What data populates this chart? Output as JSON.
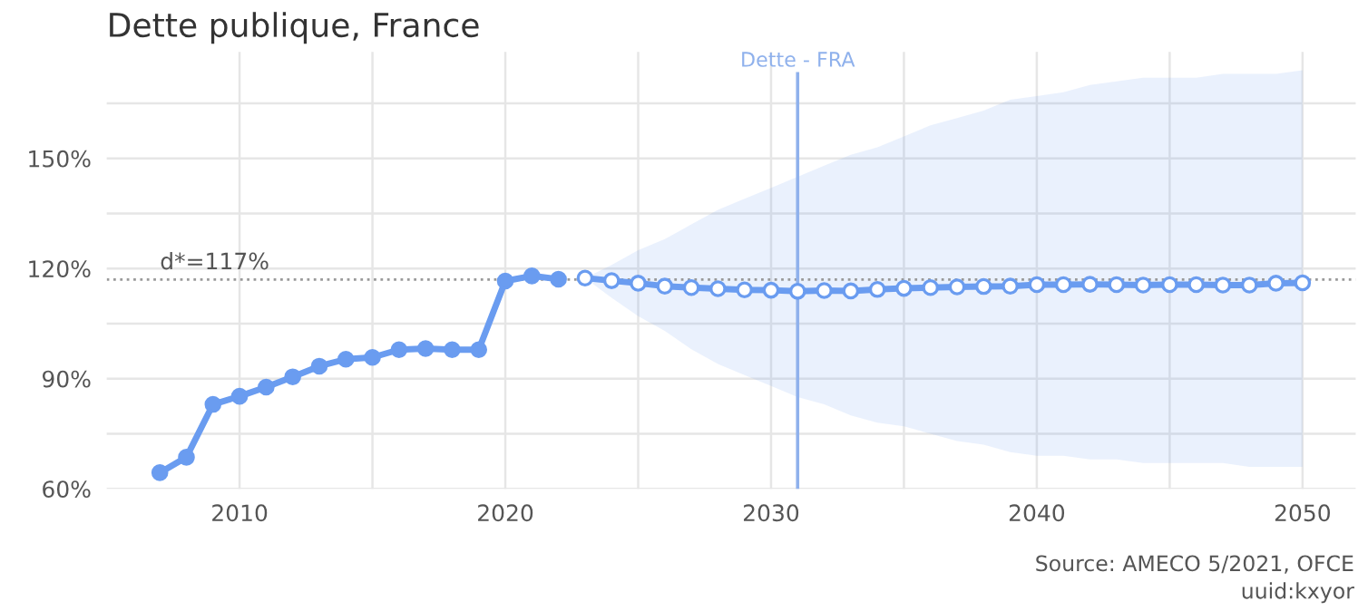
{
  "chart_data": {
    "type": "line",
    "title": "Dette publique, France",
    "xlim": [
      2005,
      2052
    ],
    "ylim": [
      60,
      179
    ],
    "xticks": [
      2010,
      {
        "value": 2015,
        "label": null
      },
      2020,
      {
        "value": 2025,
        "label": null
      },
      2030,
      {
        "value": 2035,
        "label": null
      },
      2040,
      {
        "value": 2045,
        "label": null
      },
      2050
    ],
    "yticks": [
      {
        "value": 60,
        "label": "60%"
      },
      {
        "value": 75,
        "label": null
      },
      {
        "value": 90,
        "label": "90%"
      },
      {
        "value": 105,
        "label": null
      },
      {
        "value": 120,
        "label": "120%"
      },
      {
        "value": 135,
        "label": null
      },
      {
        "value": 150,
        "label": "150%"
      },
      {
        "value": 165,
        "label": null
      }
    ],
    "grid": true,
    "marker": "circle",
    "line_style": "solid",
    "series": [
      {
        "color": "#6a9cf0",
        "x": [
          2007,
          2008,
          2009,
          2010,
          2011,
          2012,
          2013,
          2014,
          2015,
          2016,
          2017,
          2018,
          2019,
          2020,
          2021,
          2022
        ],
        "values": [
          64.4,
          68.6,
          83,
          85.2,
          87.7,
          90.5,
          93.4,
          95.3,
          95.8,
          97.9,
          98.2,
          97.9,
          97.9,
          116.6,
          118,
          117.1
        ]
      },
      {
        "color": "#6a9cf0",
        "x": [
          2023,
          2024,
          2025,
          2026,
          2027,
          2028,
          2029,
          2030,
          2031,
          2032,
          2033,
          2034,
          2035,
          2036,
          2037,
          2038,
          2039,
          2040,
          2041,
          2042,
          2043,
          2044,
          2045,
          2046,
          2047,
          2048,
          2049,
          2050
        ],
        "values": [
          117.4,
          116.7,
          116.0,
          115.2,
          114.8,
          114.5,
          114.2,
          114.1,
          113.8,
          114.0,
          113.9,
          114.3,
          114.6,
          114.8,
          115.0,
          115.1,
          115.2,
          115.6,
          115.6,
          115.7,
          115.6,
          115.5,
          115.6,
          115.6,
          115.5,
          115.5,
          116.0,
          116.1
        ],
        "lower": [
          117.4,
          112,
          107,
          103,
          98,
          94,
          91,
          88,
          85,
          83,
          80,
          78,
          77,
          75,
          73,
          72,
          70,
          69,
          69,
          68,
          68,
          67,
          67,
          67,
          67,
          66,
          66,
          66
        ],
        "upper": [
          117.4,
          121,
          125,
          128,
          132,
          136,
          139,
          142,
          145,
          148,
          151,
          153,
          156,
          159,
          161,
          163,
          166,
          167,
          168,
          170,
          171,
          172,
          172,
          172,
          173,
          173,
          173,
          174
        ]
      }
    ],
    "ref_lines": [
      {
        "axis": "y",
        "value": 117,
        "label": "d*=117%",
        "color": "#999999",
        "line_style": "dotted"
      },
      {
        "axis": "x",
        "value": 2031,
        "label": "Dette - FRA",
        "color": "#8fb1ec",
        "line_style": "solid"
      }
    ],
    "annotations": [
      "Source: AMECO 5/2021, OFCE",
      "uuid:kxyor"
    ]
  }
}
